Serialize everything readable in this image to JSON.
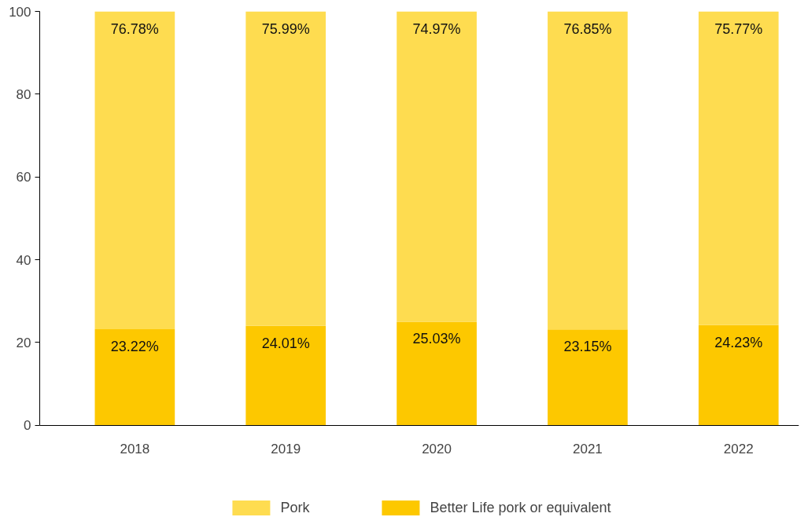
{
  "chart_data": {
    "type": "bar",
    "stacked": true,
    "categories": [
      "2018",
      "2019",
      "2020",
      "2021",
      "2022"
    ],
    "series": [
      {
        "name": "Better Life pork or equivalent",
        "color": "#fdc800",
        "values": [
          23.22,
          24.01,
          25.03,
          23.15,
          24.23
        ],
        "value_labels": [
          "23.22%",
          "24.01%",
          "25.03%",
          "23.15%",
          "24.23%"
        ]
      },
      {
        "name": "Pork",
        "color": "#fedc50",
        "values": [
          76.78,
          75.99,
          74.97,
          76.85,
          75.77
        ],
        "value_labels": [
          "76.78%",
          "75.99%",
          "74.97%",
          "76.85%",
          "75.77%"
        ]
      }
    ],
    "ylim": [
      0,
      100
    ],
    "yticks": [
      0,
      20,
      40,
      60,
      80,
      100
    ],
    "grid": false,
    "legend": "bottom"
  }
}
